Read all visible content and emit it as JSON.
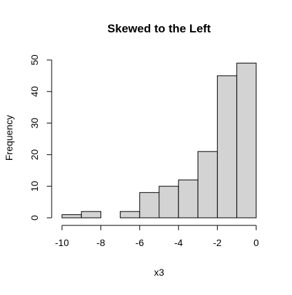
{
  "chart_data": {
    "type": "bar",
    "title": "Skewed to the Left",
    "xlabel": "x3",
    "ylabel": "Frequency",
    "bins": [
      {
        "from": -10,
        "to": -9,
        "count": 1
      },
      {
        "from": -9,
        "to": -8,
        "count": 2
      },
      {
        "from": -8,
        "to": -7,
        "count": 0
      },
      {
        "from": -7,
        "to": -6,
        "count": 2
      },
      {
        "from": -6,
        "to": -5,
        "count": 8
      },
      {
        "from": -5,
        "to": -4,
        "count": 10
      },
      {
        "from": -4,
        "to": -3,
        "count": 12
      },
      {
        "from": -3,
        "to": -2,
        "count": 21
      },
      {
        "from": -2,
        "to": -1,
        "count": 45
      },
      {
        "from": -1,
        "to": 0,
        "count": 49
      }
    ],
    "xlim": [
      -10,
      0
    ],
    "ylim": [
      0,
      50
    ],
    "x_ticks": [
      -10,
      -8,
      -6,
      -4,
      -2,
      0
    ],
    "y_ticks": [
      0,
      10,
      20,
      30,
      40,
      50
    ],
    "bar_color": "#d3d3d3",
    "edge_color": "#000000",
    "grid": false
  }
}
